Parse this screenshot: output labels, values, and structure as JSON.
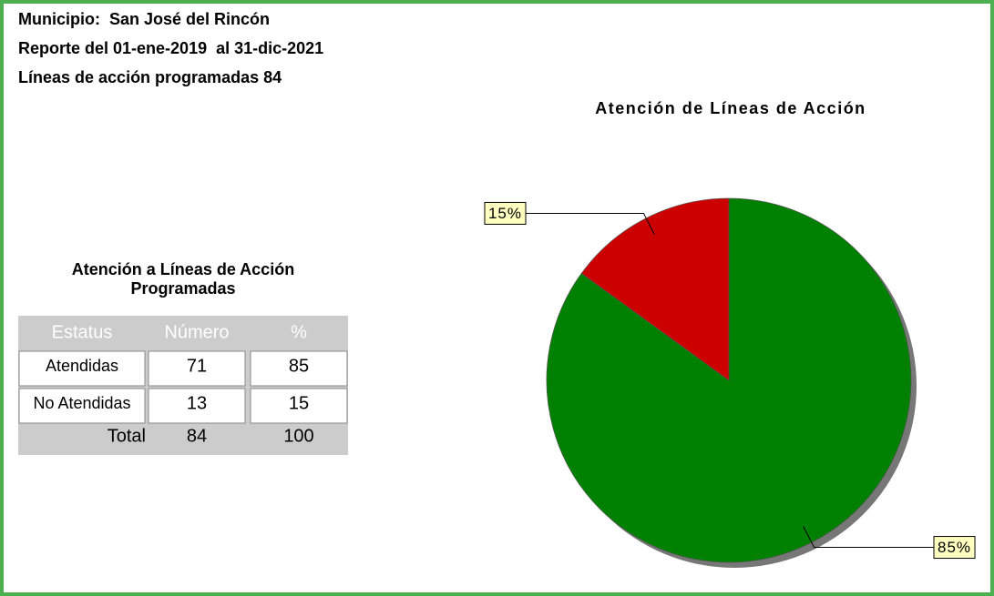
{
  "header": {
    "municipio": "Municipio:  San José del Rincón",
    "reporte": "Reporte del 01-ene-2019  al 31-dic-2021",
    "lineas": "Líneas de acción programadas 84"
  },
  "table": {
    "title": [
      "Atención a Líneas de Acción",
      "Programadas"
    ],
    "columns": [
      "Estatus",
      "Número",
      "%"
    ],
    "rows": [
      [
        "Atendidas",
        71,
        85
      ],
      [
        "No Atendidas",
        13,
        15
      ]
    ],
    "total": [
      "Total",
      84,
      100
    ]
  },
  "chart_data": {
    "type": "pie",
    "title": "Atención de Líneas de Acción",
    "values": [
      85,
      15
    ],
    "value_labels": [
      "85%",
      "15%"
    ],
    "colors": [
      "#008000",
      "#cc0000"
    ]
  }
}
